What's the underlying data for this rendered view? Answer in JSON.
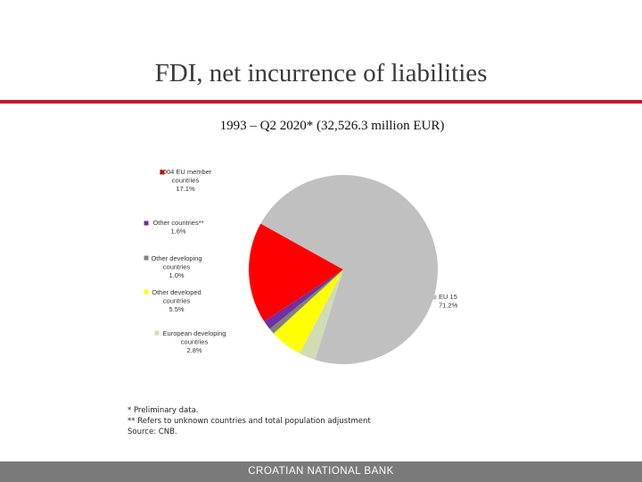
{
  "title": "FDI, net incurrence of liabilities",
  "subtitle": "1993 – Q2 2020* (32,526.3 million EUR)",
  "chart_data": {
    "type": "pie",
    "title": "FDI, net incurrence of liabilities",
    "subtitle": "1993 – Q2 2020* (32,526.3 million EUR)",
    "slices": [
      {
        "name": "EU 15",
        "value": 71.2,
        "label": "71.2%",
        "color": "#c0c0c0"
      },
      {
        "name": "European developing countries",
        "value": 2.8,
        "label": "2.8%",
        "color": "#d2dcb4"
      },
      {
        "name": "Other developed countries",
        "value": 5.5,
        "label": "5.5%",
        "color": "#ffff00"
      },
      {
        "name": "Other developing countries",
        "value": 1.0,
        "label": "1.0%",
        "color": "#808080"
      },
      {
        "name": "Other countries**",
        "value": 1.6,
        "label": "1.6%",
        "color": "#7030a0"
      },
      {
        "name": "2004 EU member countries",
        "value": 17.1,
        "label": "17.1%",
        "color": "#ff0000"
      }
    ],
    "legend": [
      {
        "lines": [
          "2004 EU member",
          "countries",
          "17.1%"
        ],
        "color": "#ff0000"
      },
      {
        "lines": [
          "Other countries**",
          "1.6%"
        ],
        "color": "#7030a0"
      },
      {
        "lines": [
          "Other developing",
          "countries",
          "1.0%"
        ],
        "color": "#808080"
      },
      {
        "lines": [
          "Other developed",
          "countries",
          "5.5%"
        ],
        "color": "#ffff00"
      },
      {
        "lines": [
          "European developing",
          "countries",
          "2.8%"
        ],
        "color": "#d2dcb4"
      },
      {
        "lines": [
          "EU 15",
          "71.2%"
        ],
        "color": "#c0c0c0"
      }
    ]
  },
  "notes": {
    "line1": "*  Preliminary data.",
    "line2": "** Refers to unknown countries and total population adjustment",
    "line3": "Source: CNB."
  },
  "footer": "CROATIAN NATIONAL BANK",
  "colors": {
    "accent_rule": "#c8102e",
    "footer_bg": "#7a7a7a"
  }
}
